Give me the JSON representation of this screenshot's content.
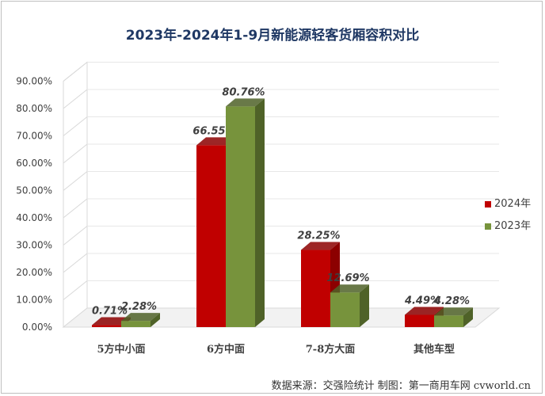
{
  "title": "2023年-2024年1-9月新能源轻客货厢容积对比",
  "source": "数据来源：交强险统计  制图：第一商用车网 cvworld.cn",
  "colors": {
    "series_2024": "#c00000",
    "series_2024_dark": "#8c0000",
    "series_2023": "#77933c",
    "series_2023_dark": "#4f6228"
  },
  "chart_data": {
    "type": "bar",
    "categories": [
      "5方中小面",
      "6方中面",
      "7-8方大面",
      "其他车型"
    ],
    "series": [
      {
        "name": "2024年",
        "values": [
          0.71,
          66.55,
          28.25,
          4.49
        ],
        "labels": [
          "0.71%",
          "66.55%",
          "28.25%",
          "4.49%"
        ]
      },
      {
        "name": "2023年",
        "values": [
          2.28,
          80.76,
          12.69,
          4.28
        ],
        "labels": [
          "2.28%",
          "80.76%",
          "12.69%",
          "4.28%"
        ]
      }
    ],
    "yticks": [
      "0.00%",
      "10.00%",
      "20.00%",
      "30.00%",
      "40.00%",
      "50.00%",
      "60.00%",
      "70.00%",
      "80.00%",
      "90.00%"
    ],
    "ylim": [
      0,
      90
    ],
    "grid": true,
    "legend_position": "right",
    "style": "3d"
  }
}
